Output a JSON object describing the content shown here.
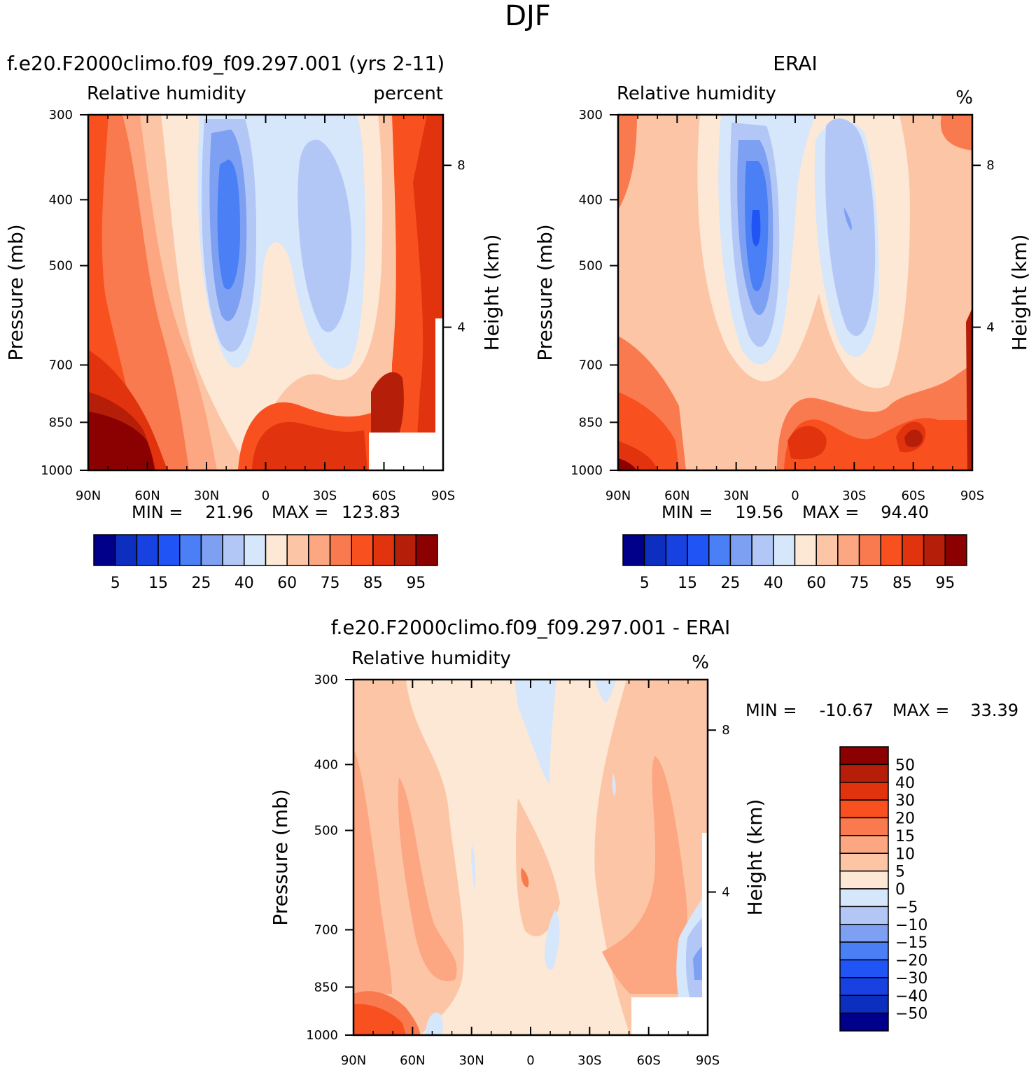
{
  "colors": {
    "abs_scale": [
      "#00008b",
      "#0d2fc0",
      "#1741e0",
      "#2154f5",
      "#4a7ff5",
      "#7ea0f2",
      "#b3c7f7",
      "#d6e6fb",
      "#fde8d6",
      "#fcc6a6",
      "#fca682",
      "#fa7a4f",
      "#f9501f",
      "#e1330d",
      "#b51e09",
      "#8b0000"
    ],
    "diff_scale": [
      "#00008b",
      "#0d2fc0",
      "#1741e0",
      "#2154f5",
      "#4a7ff5",
      "#7ea0f2",
      "#b3c7f7",
      "#d6e6fb",
      "#fde8d6",
      "#fcc6a6",
      "#fca682",
      "#fa7a4f",
      "#f9501f",
      "#e1330d",
      "#b51e09",
      "#8b0000"
    ],
    "white": "#ffffff"
  },
  "chart_data": {
    "type": "contour",
    "title": "DJF",
    "panels": [
      {
        "id": "model",
        "case_title": "f.e20.F2000climo.f09_f09.297.001 (yrs 2-11)",
        "variable": "Relative humidity",
        "units": "percent",
        "ylabel": "Pressure (mb)",
        "y2label": "Height (km)",
        "xticks": [
          "90N",
          "60N",
          "30N",
          "0",
          "30S",
          "60S",
          "90S"
        ],
        "yticks": [
          "300",
          "400",
          "500",
          "700",
          "850",
          "1000"
        ],
        "y2ticks": [
          "8",
          "4"
        ],
        "ylim": [
          1000,
          300
        ],
        "min_label": "MIN =",
        "min_value": "21.96",
        "max_label": "MAX =",
        "max_value": "123.83",
        "colorbar_labels": [
          "5",
          "15",
          "25",
          "40",
          "60",
          "75",
          "85",
          "95"
        ]
      },
      {
        "id": "obs",
        "case_title": "ERAI",
        "variable": "Relative humidity",
        "units": "%",
        "ylabel": "Pressure (mb)",
        "y2label": "Height (km)",
        "xticks": [
          "90N",
          "60N",
          "30N",
          "0",
          "30S",
          "60S",
          "90S"
        ],
        "yticks": [
          "300",
          "400",
          "500",
          "700",
          "850",
          "1000"
        ],
        "y2ticks": [
          "8",
          "4"
        ],
        "ylim": [
          1000,
          300
        ],
        "min_label": "MIN =",
        "min_value": "19.56",
        "max_label": "MAX =",
        "max_value": "94.40",
        "colorbar_labels": [
          "5",
          "15",
          "25",
          "40",
          "60",
          "75",
          "85",
          "95"
        ]
      },
      {
        "id": "diff",
        "case_title": "f.e20.F2000climo.f09_f09.297.001 - ERAI",
        "variable": "Relative humidity",
        "units": "%",
        "ylabel": "Pressure (mb)",
        "y2label": "Height (km)",
        "xticks": [
          "90N",
          "60N",
          "30N",
          "0",
          "30S",
          "60S",
          "90S"
        ],
        "yticks": [
          "300",
          "400",
          "500",
          "700",
          "850",
          "1000"
        ],
        "y2ticks": [
          "8",
          "4"
        ],
        "ylim": [
          1000,
          300
        ],
        "min_label": "MIN =",
        "min_value": "-10.67",
        "max_label": "MAX =",
        "max_value": "33.39",
        "colorbar_labels": [
          "50",
          "40",
          "30",
          "20",
          "15",
          "10",
          "5",
          "0",
          "-5",
          "-10",
          "-15",
          "-20",
          "-30",
          "-40",
          "-50"
        ]
      }
    ]
  }
}
